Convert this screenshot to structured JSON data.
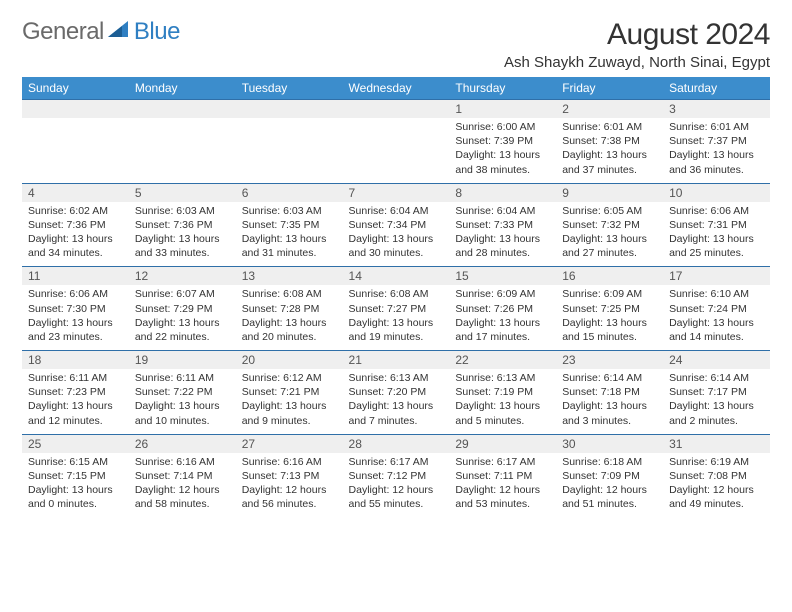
{
  "brand": {
    "text1": "General",
    "text2": "Blue"
  },
  "header": {
    "title": "August 2024",
    "location": "Ash Shaykh Zuwayd, North Sinai, Egypt"
  },
  "colors": {
    "header_bg": "#3c8dcc",
    "header_text": "#ffffff",
    "numrow_bg": "#efefef",
    "numrow_border": "#2f6fa8",
    "brand_gray": "#6a6a6a",
    "brand_blue": "#2f7fc2",
    "body_bg": "#ffffff"
  },
  "fonts": {
    "title_size": 30,
    "location_size": 15,
    "dayhead_size": 12,
    "cell_size": 10.5
  },
  "days": [
    "Sunday",
    "Monday",
    "Tuesday",
    "Wednesday",
    "Thursday",
    "Friday",
    "Saturday"
  ],
  "weeks": [
    {
      "cells": [
        {
          "num": "",
          "sunrise": "",
          "sunset": "",
          "daylight": ""
        },
        {
          "num": "",
          "sunrise": "",
          "sunset": "",
          "daylight": ""
        },
        {
          "num": "",
          "sunrise": "",
          "sunset": "",
          "daylight": ""
        },
        {
          "num": "",
          "sunrise": "",
          "sunset": "",
          "daylight": ""
        },
        {
          "num": "1",
          "sunrise": "Sunrise: 6:00 AM",
          "sunset": "Sunset: 7:39 PM",
          "daylight": "Daylight: 13 hours and 38 minutes."
        },
        {
          "num": "2",
          "sunrise": "Sunrise: 6:01 AM",
          "sunset": "Sunset: 7:38 PM",
          "daylight": "Daylight: 13 hours and 37 minutes."
        },
        {
          "num": "3",
          "sunrise": "Sunrise: 6:01 AM",
          "sunset": "Sunset: 7:37 PM",
          "daylight": "Daylight: 13 hours and 36 minutes."
        }
      ]
    },
    {
      "cells": [
        {
          "num": "4",
          "sunrise": "Sunrise: 6:02 AM",
          "sunset": "Sunset: 7:36 PM",
          "daylight": "Daylight: 13 hours and 34 minutes."
        },
        {
          "num": "5",
          "sunrise": "Sunrise: 6:03 AM",
          "sunset": "Sunset: 7:36 PM",
          "daylight": "Daylight: 13 hours and 33 minutes."
        },
        {
          "num": "6",
          "sunrise": "Sunrise: 6:03 AM",
          "sunset": "Sunset: 7:35 PM",
          "daylight": "Daylight: 13 hours and 31 minutes."
        },
        {
          "num": "7",
          "sunrise": "Sunrise: 6:04 AM",
          "sunset": "Sunset: 7:34 PM",
          "daylight": "Daylight: 13 hours and 30 minutes."
        },
        {
          "num": "8",
          "sunrise": "Sunrise: 6:04 AM",
          "sunset": "Sunset: 7:33 PM",
          "daylight": "Daylight: 13 hours and 28 minutes."
        },
        {
          "num": "9",
          "sunrise": "Sunrise: 6:05 AM",
          "sunset": "Sunset: 7:32 PM",
          "daylight": "Daylight: 13 hours and 27 minutes."
        },
        {
          "num": "10",
          "sunrise": "Sunrise: 6:06 AM",
          "sunset": "Sunset: 7:31 PM",
          "daylight": "Daylight: 13 hours and 25 minutes."
        }
      ]
    },
    {
      "cells": [
        {
          "num": "11",
          "sunrise": "Sunrise: 6:06 AM",
          "sunset": "Sunset: 7:30 PM",
          "daylight": "Daylight: 13 hours and 23 minutes."
        },
        {
          "num": "12",
          "sunrise": "Sunrise: 6:07 AM",
          "sunset": "Sunset: 7:29 PM",
          "daylight": "Daylight: 13 hours and 22 minutes."
        },
        {
          "num": "13",
          "sunrise": "Sunrise: 6:08 AM",
          "sunset": "Sunset: 7:28 PM",
          "daylight": "Daylight: 13 hours and 20 minutes."
        },
        {
          "num": "14",
          "sunrise": "Sunrise: 6:08 AM",
          "sunset": "Sunset: 7:27 PM",
          "daylight": "Daylight: 13 hours and 19 minutes."
        },
        {
          "num": "15",
          "sunrise": "Sunrise: 6:09 AM",
          "sunset": "Sunset: 7:26 PM",
          "daylight": "Daylight: 13 hours and 17 minutes."
        },
        {
          "num": "16",
          "sunrise": "Sunrise: 6:09 AM",
          "sunset": "Sunset: 7:25 PM",
          "daylight": "Daylight: 13 hours and 15 minutes."
        },
        {
          "num": "17",
          "sunrise": "Sunrise: 6:10 AM",
          "sunset": "Sunset: 7:24 PM",
          "daylight": "Daylight: 13 hours and 14 minutes."
        }
      ]
    },
    {
      "cells": [
        {
          "num": "18",
          "sunrise": "Sunrise: 6:11 AM",
          "sunset": "Sunset: 7:23 PM",
          "daylight": "Daylight: 13 hours and 12 minutes."
        },
        {
          "num": "19",
          "sunrise": "Sunrise: 6:11 AM",
          "sunset": "Sunset: 7:22 PM",
          "daylight": "Daylight: 13 hours and 10 minutes."
        },
        {
          "num": "20",
          "sunrise": "Sunrise: 6:12 AM",
          "sunset": "Sunset: 7:21 PM",
          "daylight": "Daylight: 13 hours and 9 minutes."
        },
        {
          "num": "21",
          "sunrise": "Sunrise: 6:13 AM",
          "sunset": "Sunset: 7:20 PM",
          "daylight": "Daylight: 13 hours and 7 minutes."
        },
        {
          "num": "22",
          "sunrise": "Sunrise: 6:13 AM",
          "sunset": "Sunset: 7:19 PM",
          "daylight": "Daylight: 13 hours and 5 minutes."
        },
        {
          "num": "23",
          "sunrise": "Sunrise: 6:14 AM",
          "sunset": "Sunset: 7:18 PM",
          "daylight": "Daylight: 13 hours and 3 minutes."
        },
        {
          "num": "24",
          "sunrise": "Sunrise: 6:14 AM",
          "sunset": "Sunset: 7:17 PM",
          "daylight": "Daylight: 13 hours and 2 minutes."
        }
      ]
    },
    {
      "cells": [
        {
          "num": "25",
          "sunrise": "Sunrise: 6:15 AM",
          "sunset": "Sunset: 7:15 PM",
          "daylight": "Daylight: 13 hours and 0 minutes."
        },
        {
          "num": "26",
          "sunrise": "Sunrise: 6:16 AM",
          "sunset": "Sunset: 7:14 PM",
          "daylight": "Daylight: 12 hours and 58 minutes."
        },
        {
          "num": "27",
          "sunrise": "Sunrise: 6:16 AM",
          "sunset": "Sunset: 7:13 PM",
          "daylight": "Daylight: 12 hours and 56 minutes."
        },
        {
          "num": "28",
          "sunrise": "Sunrise: 6:17 AM",
          "sunset": "Sunset: 7:12 PM",
          "daylight": "Daylight: 12 hours and 55 minutes."
        },
        {
          "num": "29",
          "sunrise": "Sunrise: 6:17 AM",
          "sunset": "Sunset: 7:11 PM",
          "daylight": "Daylight: 12 hours and 53 minutes."
        },
        {
          "num": "30",
          "sunrise": "Sunrise: 6:18 AM",
          "sunset": "Sunset: 7:09 PM",
          "daylight": "Daylight: 12 hours and 51 minutes."
        },
        {
          "num": "31",
          "sunrise": "Sunrise: 6:19 AM",
          "sunset": "Sunset: 7:08 PM",
          "daylight": "Daylight: 12 hours and 49 minutes."
        }
      ]
    }
  ]
}
